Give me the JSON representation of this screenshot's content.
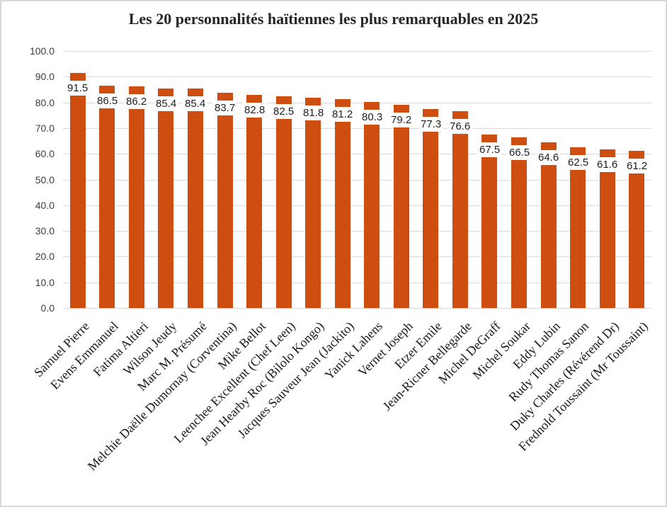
{
  "title": "Les 20 personnalités haïtiennes les plus remarquables en 2025",
  "colors": {
    "bar": "#ce4e12",
    "gridline": "#d9d9d9",
    "axis_text": "#404040",
    "label_text": "#1f1f1f",
    "title_text": "#262626",
    "background": "#ffffff",
    "chart_border": "#d9d9d9"
  },
  "chart_data": {
    "type": "bar",
    "title": "Les 20 personnalités haïtiennes les plus remarquables en 2025",
    "categories": [
      "Samuel Pierre",
      "Evens Emmanuel",
      "Fatima Altieri",
      "Wilson Jeudy",
      "Marc M. Présumé",
      "Melchie Daëlle Dumornay (Corventina)",
      "Mike Bellot",
      "Leenchee Excellent (Chef Leen)",
      "Jean Hearby Roc (Bilolo Kongo)",
      "Jacques Sauveur Jean (Jackito)",
      "Yanick Lahens",
      "Vernet Joseph",
      "Etzer Emile",
      "Jean-Ricner Bellegarde",
      "Michel DeGraff",
      "Michel Soukar",
      "Eddy Lubin",
      "Rudy Thomas Sanon",
      "Duky Charles (Révérend Dr)",
      "Frednold Toussaint (Mr Toussaint)"
    ],
    "values": [
      91.5,
      86.5,
      86.2,
      85.4,
      85.4,
      83.7,
      82.8,
      82.5,
      81.8,
      81.2,
      80.3,
      79.2,
      77.3,
      76.6,
      67.5,
      66.5,
      64.6,
      62.5,
      61.6,
      61.2
    ],
    "data_labels": [
      "91.5",
      "86.5",
      "86.2",
      "85.4",
      "85.4",
      "83.7",
      "82.8",
      "82.5",
      "81.8",
      "81.2",
      "80.3",
      "79.2",
      "77.3",
      "76.6",
      "67.5",
      "66.5",
      "64.6",
      "62.5",
      "61.6",
      "61.2"
    ],
    "xlabel": "",
    "ylabel": "",
    "ylim": [
      0,
      100
    ],
    "ytick_labels_top_to_bottom": [
      "100.0",
      "90.0",
      "80.0",
      "70.0",
      "60.0",
      "50.0",
      "40.0",
      "30.0",
      "20.0",
      "10.0",
      "0.0"
    ],
    "grid": true,
    "legend": false,
    "data_label_style": "inside-end-white-background",
    "category_label_rotation_deg": 45
  }
}
